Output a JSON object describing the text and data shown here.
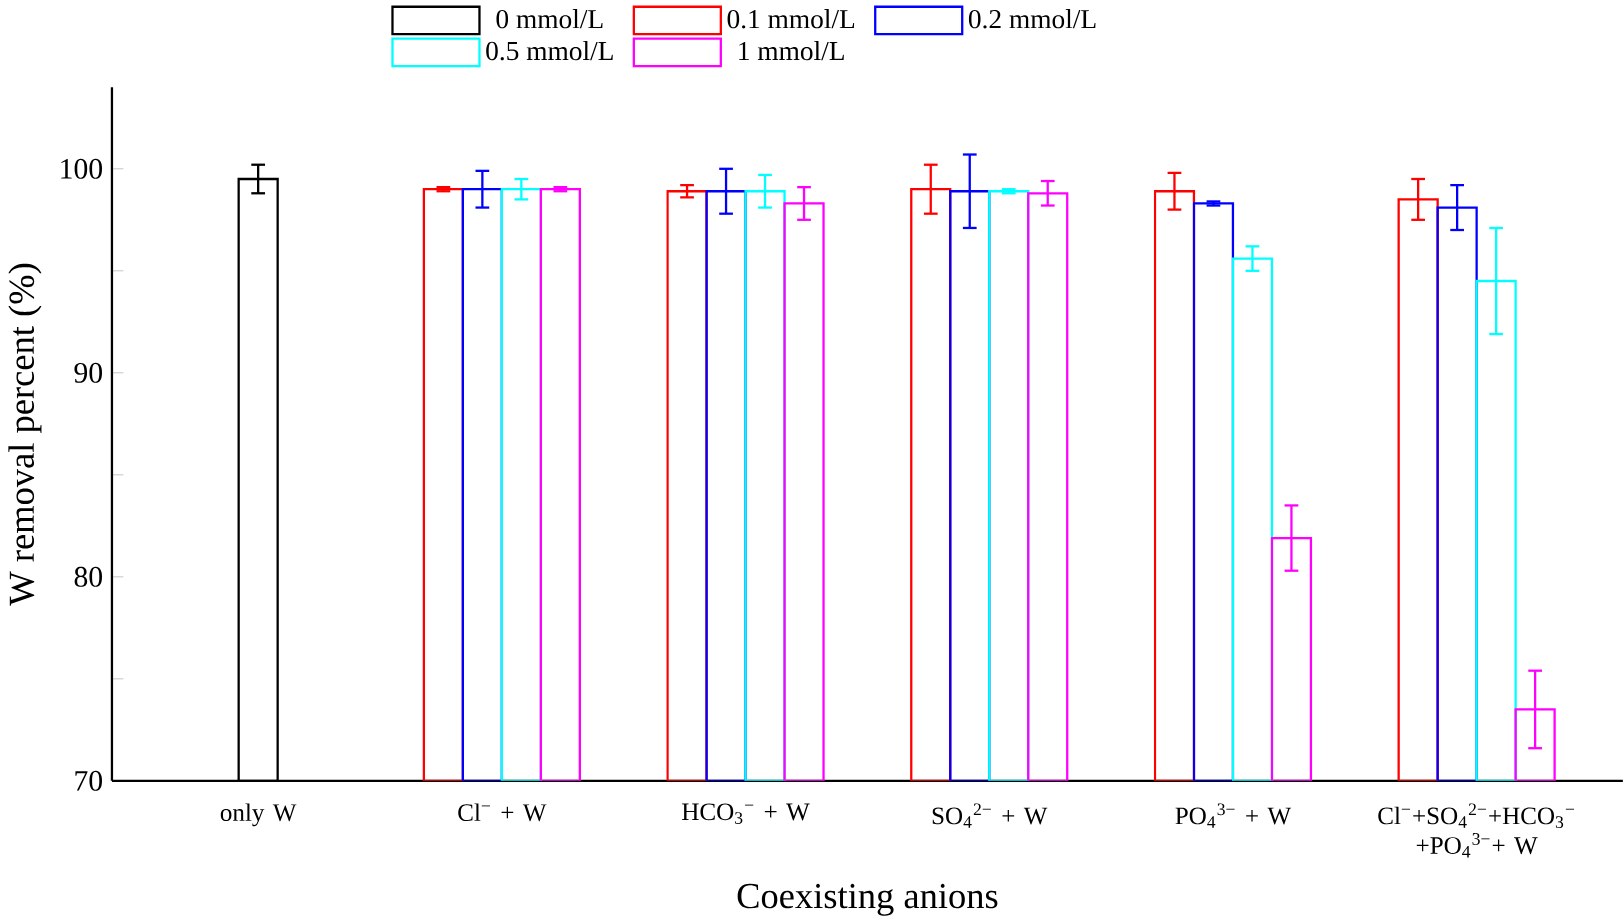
{
  "chart_data": {
    "type": "bar",
    "xlabel": "Coexisting anions",
    "ylabel": "W removal percent (%)",
    "categories": [
      "only W",
      "Cl$^{−}$ + W",
      "HCO$_{3}$$^{−}$ + W",
      "SO$_{4}$$^{2−}$ + W",
      "PO$_{4}$$^{3−}$ + W",
      "Cl$^{−}$+SO$_{4}$$^{2−}$+HCO$_{3}$$^{−}$ +PO$_{4}$$^{3−}$+ W"
    ],
    "series": [
      {
        "name": "0 mmol/L",
        "color": "#000000",
        "values": [
          99.5,
          null,
          null,
          null,
          null,
          null
        ],
        "errors": [
          0.7,
          null,
          null,
          null,
          null,
          null
        ]
      },
      {
        "name": "0.1 mmol/L",
        "color": "#ff0000",
        "values": [
          null,
          99.0,
          98.9,
          99.0,
          98.9,
          98.5
        ],
        "errors": [
          null,
          0.1,
          0.3,
          1.2,
          0.9,
          1.0
        ]
      },
      {
        "name": "0.2 mmol/L",
        "color": "#0000ff",
        "values": [
          null,
          99.0,
          98.9,
          98.9,
          98.3,
          98.1
        ],
        "errors": [
          null,
          0.9,
          1.1,
          1.8,
          0.1,
          1.1
        ]
      },
      {
        "name": "0.5 mmol/L",
        "color": "#00ffff",
        "values": [
          null,
          99.0,
          98.9,
          98.9,
          95.6,
          94.5
        ],
        "errors": [
          null,
          0.5,
          0.8,
          0.1,
          0.6,
          2.6
        ]
      },
      {
        "name": "1 mmol/L",
        "color": "#ff00ff",
        "values": [
          null,
          99.0,
          98.3,
          98.8,
          81.9,
          73.5
        ],
        "errors": [
          null,
          0.1,
          0.8,
          0.6,
          1.6,
          1.9
        ]
      }
    ],
    "ylim": [
      70,
      104
    ],
    "yticks": [
      70,
      {
        "value": 75,
        "label": null
      },
      80,
      {
        "value": 85,
        "label": null
      },
      90,
      {
        "value": 95,
        "label": null
      },
      100
    ],
    "legend": "top",
    "grid": false
  }
}
